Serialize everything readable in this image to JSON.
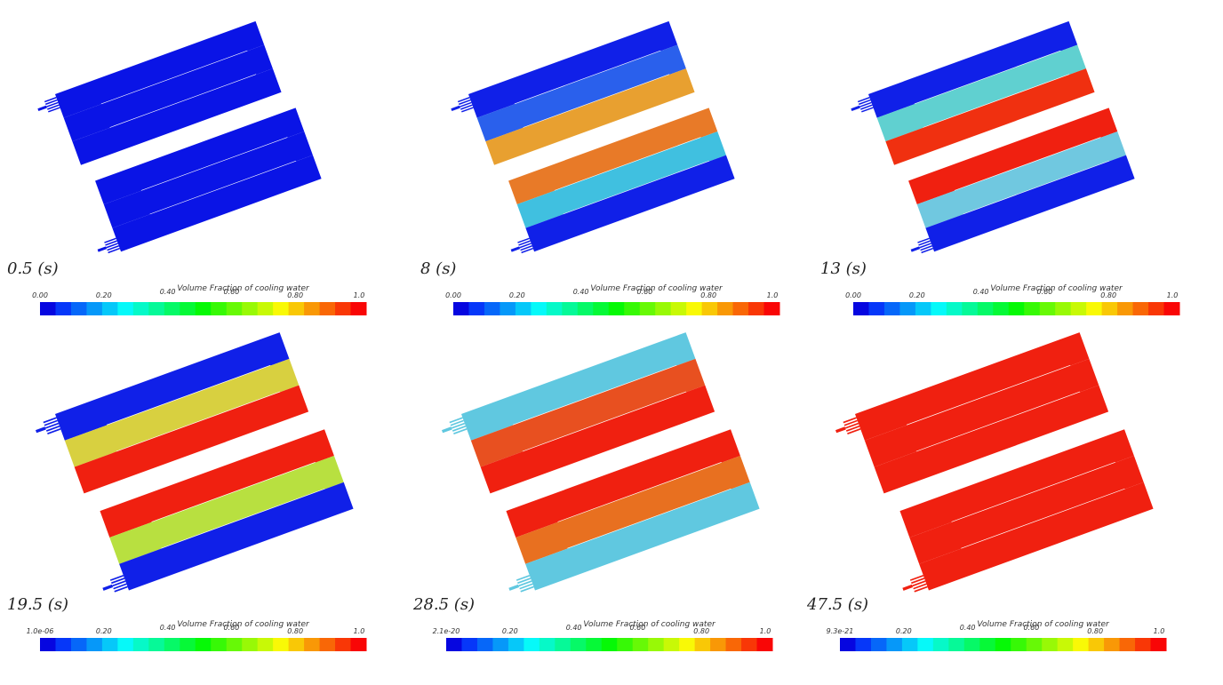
{
  "panels": [
    {
      "time": "0.5 (s)",
      "colorbar": {
        "title": "Volume Fraction of cooling water",
        "ticks": [
          "0.00",
          "0.20",
          "0.40",
          "0.60",
          "0.80",
          "1.0"
        ]
      }
    },
    {
      "time": "8 (s)",
      "colorbar": {
        "title": "Volume Fraction of cooling water",
        "ticks": [
          "0.00",
          "0.20",
          "0.40",
          "0.60",
          "0.80",
          "1.0"
        ]
      }
    },
    {
      "time": "13 (s)",
      "colorbar": {
        "title": "Volume Fraction of cooling water",
        "ticks": [
          "0.00",
          "0.20",
          "0.40",
          "0.60",
          "0.80",
          "1.0"
        ]
      }
    },
    {
      "time": "19.5 (s)",
      "colorbar": {
        "title": "Volume Fraction of cooling water",
        "ticks": [
          "1.0e-06",
          "0.20",
          "0.40",
          "0.60",
          "0.80",
          "1.0"
        ]
      }
    },
    {
      "time": "28.5 (s)",
      "colorbar": {
        "title": "Volume Fraction of cooling water",
        "ticks": [
          "2.1e-20",
          "0.20",
          "0.40",
          "0.60",
          "0.80",
          "1.0"
        ]
      }
    },
    {
      "time": "47.5 (s)",
      "colorbar": {
        "title": "Volume Fraction of cooling water",
        "ticks": [
          "9.3e-21",
          "0.20",
          "0.40",
          "0.60",
          "0.80",
          "1.0"
        ]
      }
    }
  ]
}
